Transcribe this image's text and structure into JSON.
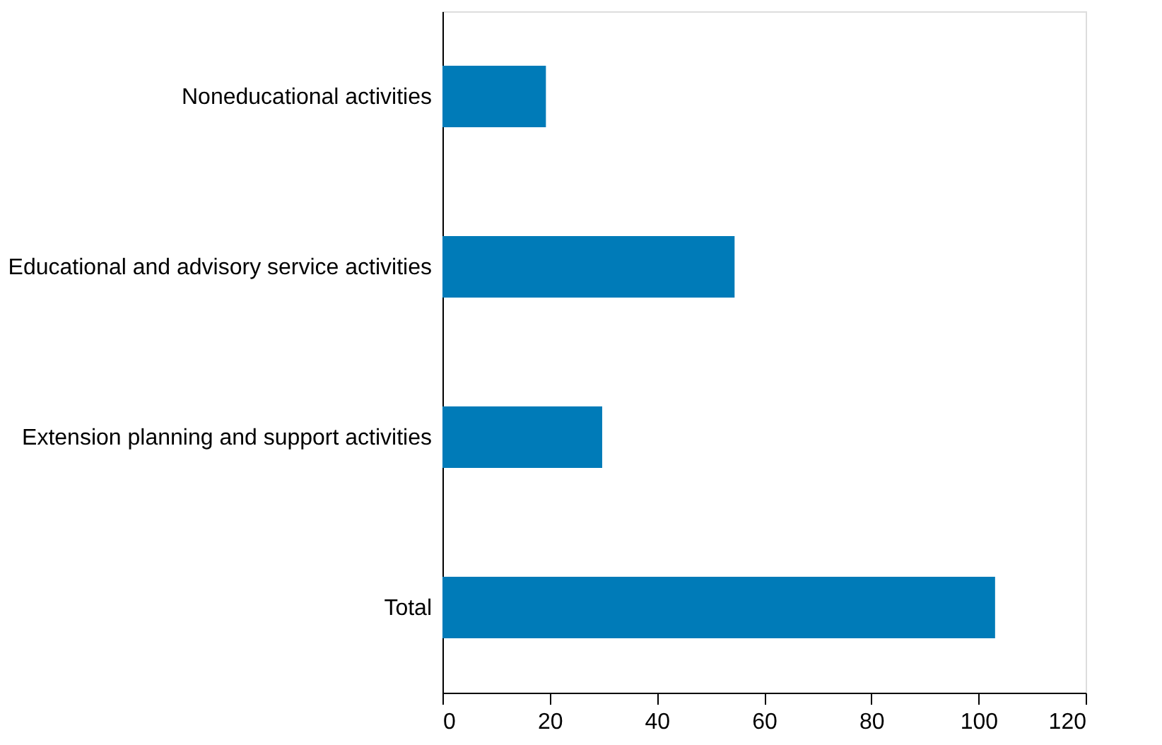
{
  "chart_data": {
    "type": "bar",
    "orientation": "horizontal",
    "categories": [
      "Noneducational activities",
      "Educational and advisory service activities",
      "Extension planning and support activities",
      "Total"
    ],
    "values": [
      19.3,
      54.5,
      29.8,
      103.1
    ],
    "color": "#007bb8",
    "xlim": [
      0,
      120
    ],
    "xticks": [
      0,
      20,
      40,
      60,
      80,
      100,
      120
    ],
    "grid": false
  }
}
